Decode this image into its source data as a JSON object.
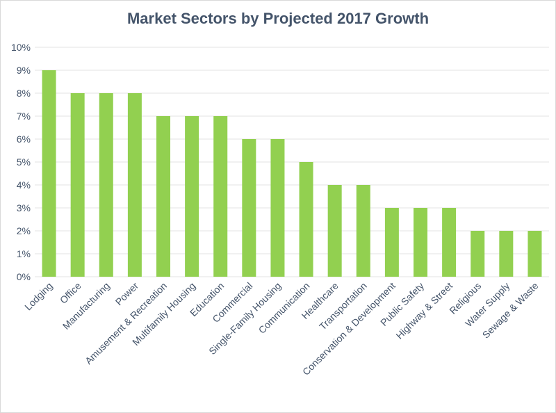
{
  "chart_data": {
    "type": "bar",
    "title": "Market Sectors by Projected 2017 Growth",
    "categories": [
      "Lodging",
      "Office",
      "Manufacturing",
      "Power",
      "Amusement & Recreation",
      "Multifamily Housing",
      "Education",
      "Commercial",
      "Single-Family Housing",
      "Communication",
      "Healthcare",
      "Transportation",
      "Conservation & Development",
      "Public Safety",
      "Highway & Street",
      "Religious",
      "Water Supply",
      "Sewage & Waste"
    ],
    "values": [
      9,
      8,
      8,
      8,
      7,
      7,
      7,
      6,
      6,
      5,
      4,
      4,
      3,
      3,
      3,
      2,
      2,
      2
    ],
    "ylim": [
      0,
      10
    ],
    "yticks": [
      "0%",
      "1%",
      "2%",
      "3%",
      "4%",
      "5%",
      "6%",
      "7%",
      "8%",
      "9%",
      "10%"
    ],
    "xlabel": "",
    "ylabel": "",
    "grid": true,
    "legend": "none",
    "bar_color": "#92d050",
    "grid_color": "#e3e3e3",
    "text_color": "#44546a"
  }
}
